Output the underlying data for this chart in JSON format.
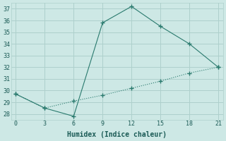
{
  "line1_x": [
    0,
    3,
    6,
    9,
    12,
    15,
    18,
    21
  ],
  "line1_y": [
    29.7,
    28.5,
    27.8,
    35.8,
    37.2,
    35.5,
    34.0,
    32.0
  ],
  "line2_x": [
    0,
    3,
    6,
    9,
    12,
    15,
    18,
    21
  ],
  "line2_y": [
    29.7,
    28.5,
    29.1,
    29.6,
    30.2,
    30.8,
    31.5,
    32.0
  ],
  "line_color": "#2a7a6e",
  "xlabel": "Humidex (Indice chaleur)",
  "xlim": [
    -0.5,
    21.5
  ],
  "ylim": [
    27.5,
    37.5
  ],
  "xticks": [
    0,
    3,
    6,
    9,
    12,
    15,
    18,
    21
  ],
  "yticks": [
    28,
    29,
    30,
    31,
    32,
    33,
    34,
    35,
    36,
    37
  ],
  "bg_color": "#cde8e5",
  "grid_color": "#aed0cc",
  "font_color": "#1a5a55",
  "tick_fontsize": 6,
  "xlabel_fontsize": 7
}
